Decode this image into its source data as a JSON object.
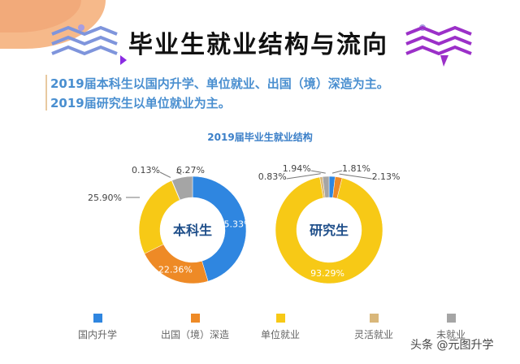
{
  "header": {
    "title": "毕业生就业结构与流向",
    "lines": [
      "2019届本科生以国内升学、单位就业、出国（境）深造为主。",
      "2019届研究生以单位就业为主。"
    ]
  },
  "watermark": "头条 @元图升学",
  "chart_data": {
    "type": "pie",
    "title": "2019届毕业生就业结构",
    "categories": [
      "国内升学",
      "出国（境）深造",
      "单位就业",
      "灵活就业",
      "未就业"
    ],
    "colors": [
      "#2f86e0",
      "#ee8a26",
      "#f7c916",
      "#d9b77a",
      "#a5a5a5"
    ],
    "charts": [
      {
        "center_label": "本科生",
        "values": [
          45.33,
          22.36,
          25.9,
          0.13,
          6.27
        ],
        "labels": [
          "45.33%",
          "22.36%",
          "25.90%",
          "0.13%",
          "6.27%"
        ]
      },
      {
        "center_label": "研究生",
        "values": [
          1.81,
          2.13,
          93.29,
          0.83,
          1.94
        ],
        "labels": [
          "1.81%",
          "2.13%",
          "93.29%",
          "0.83%",
          "1.94%"
        ]
      }
    ]
  }
}
